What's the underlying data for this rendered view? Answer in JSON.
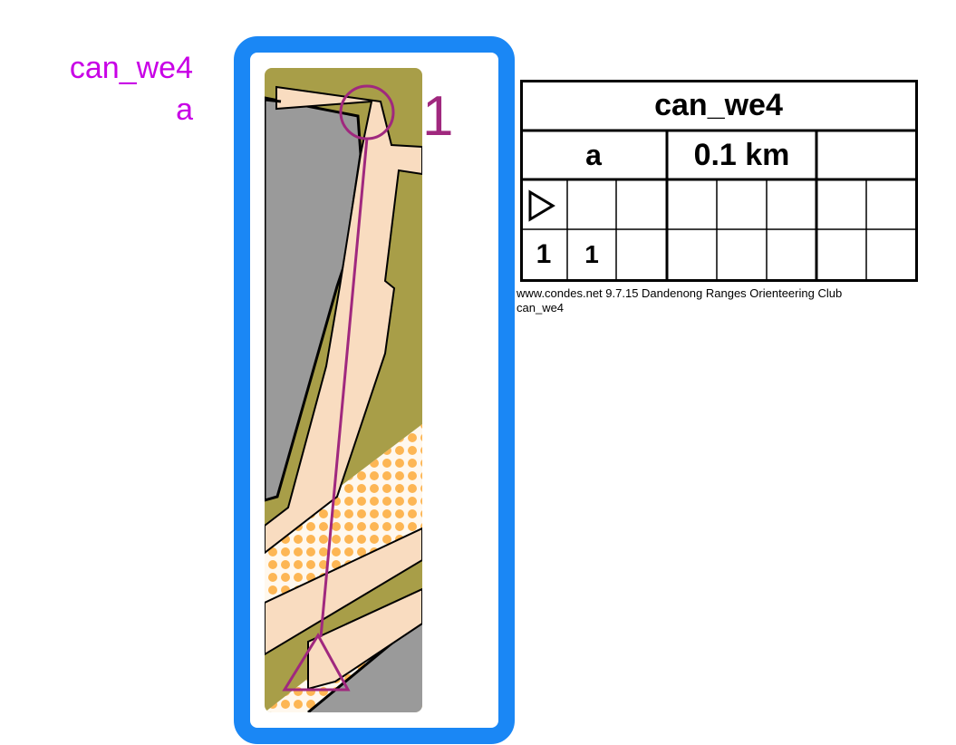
{
  "course": {
    "name": "can_we4",
    "variant": "a",
    "label_color": "#c800e6"
  },
  "map": {
    "frame_color": "#1a87f5",
    "overprint_color": "#a0287e",
    "control_number": "1",
    "features": [
      "paved-area",
      "building",
      "open-land-dots",
      "vegetation-olive"
    ]
  },
  "description_sheet": {
    "title": "can_we4",
    "variant": "a",
    "length": "0.1 km",
    "start_symbol": "start-triangle-icon",
    "controls": [
      {
        "sequence": "1",
        "code": "1"
      }
    ]
  },
  "footer": {
    "line1": "www.condes.net 9.7.15 Dandenong Ranges Orienteering Club",
    "line2": "can_we4"
  }
}
